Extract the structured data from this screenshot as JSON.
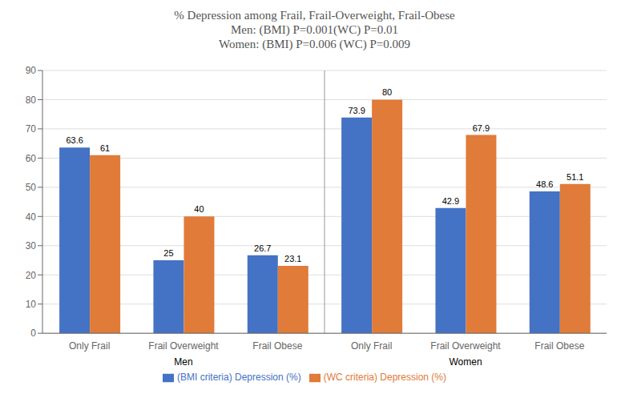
{
  "chart_data": {
    "type": "bar",
    "title": "% Depression among Frail, Frail-Overweight, Frail-Obese\nMen: (BMI) P=0.001(WC) P=0.01\nWomen: (BMI) P=0.006 (WC) P=0.009",
    "categories": [
      "Only Frail",
      "Frail Overweight",
      "Frail Obese",
      "Only Frail",
      "Frail Overweight",
      "Frail Obese"
    ],
    "annotations": [
      "Men",
      "Women"
    ],
    "series": [
      {
        "name": "(BMI criteria) Depression (%)",
        "color": "#4472C4",
        "values": [
          63.6,
          25.0,
          26.7,
          73.9,
          42.9,
          48.6
        ]
      },
      {
        "name": "(WC criteria) Depression (%)",
        "color": "#E07B39",
        "values": [
          61.0,
          40.0,
          23.1,
          80.0,
          67.9,
          51.1
        ]
      }
    ],
    "ylim": [
      0,
      90
    ],
    "yticks": [
      0,
      10,
      20,
      30,
      40,
      50,
      60,
      70,
      80,
      90
    ],
    "grid": true,
    "data_labels": true,
    "legend": "bottom"
  }
}
